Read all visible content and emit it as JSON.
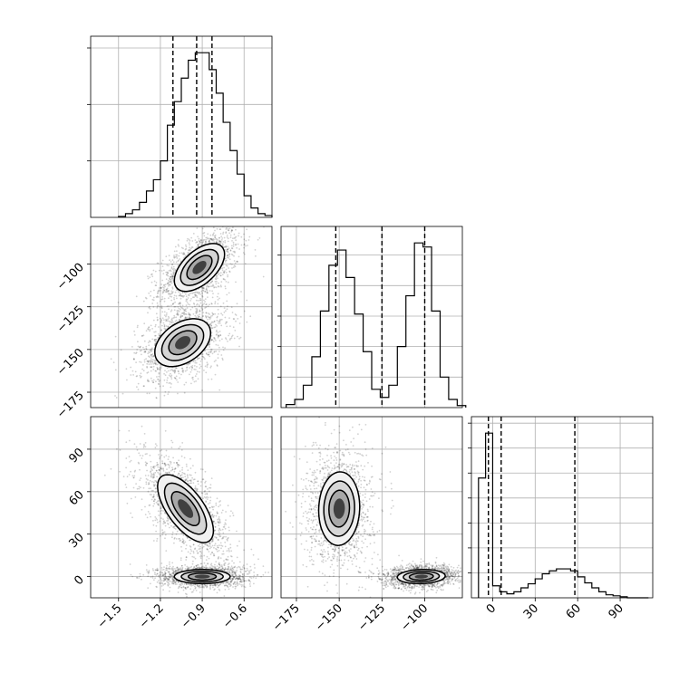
{
  "chart_data": {
    "type": "corner",
    "title": "",
    "params": [
      {
        "label": "",
        "ticks": [
          -1.5,
          -1.2,
          -0.9,
          -0.6
        ],
        "tick_labels": [
          "−1.5",
          "−1.2",
          "−0.9",
          "−0.6"
        ],
        "range": [
          -1.7,
          -0.4
        ]
      },
      {
        "label": "",
        "ticks": [
          -175,
          -150,
          -125,
          -100
        ],
        "tick_labels": [
          "−175",
          "−150",
          "−125",
          "−100"
        ],
        "range": [
          -184,
          -78
        ]
      },
      {
        "label": "",
        "ticks": [
          0,
          30,
          60,
          90
        ],
        "tick_labels": [
          "0",
          "30",
          "60",
          "90"
        ],
        "range": [
          -15,
          113
        ]
      }
    ],
    "histograms": [
      {
        "param": 0,
        "bin_edges": [
          -1.5,
          -1.45,
          -1.4,
          -1.35,
          -1.3,
          -1.25,
          -1.2,
          -1.15,
          -1.1,
          -1.05,
          -1.0,
          -0.95,
          -0.9,
          -0.85,
          -0.8,
          -0.75,
          -0.7,
          -0.65,
          -0.6,
          -0.55,
          -0.5,
          -0.45,
          -0.4
        ],
        "counts": [
          1,
          4,
          8,
          16,
          28,
          40,
          60,
          98,
          123,
          148,
          167,
          175,
          175,
          157,
          132,
          101,
          71,
          46,
          23,
          10,
          4,
          2
        ],
        "quantiles": [
          -1.11,
          -0.94,
          -0.83
        ]
      },
      {
        "param": 1,
        "bin_edges": [
          -181,
          -176,
          -171,
          -166,
          -161,
          -156,
          -151,
          -146,
          -141,
          -136,
          -131,
          -126,
          -121,
          -116,
          -111,
          -106,
          -101,
          -96,
          -91,
          -86,
          -81,
          -76
        ],
        "counts": [
          3,
          8,
          22,
          50,
          95,
          140,
          155,
          128,
          92,
          55,
          18,
          10,
          22,
          60,
          110,
          162,
          158,
          95,
          30,
          8,
          2
        ],
        "quantiles": [
          -152,
          -125,
          -100
        ]
      },
      {
        "param": 2,
        "bin_edges": [
          -10,
          -5,
          0,
          5,
          10,
          15,
          20,
          25,
          30,
          35,
          40,
          45,
          50,
          55,
          60,
          65,
          70,
          75,
          80,
          85,
          90,
          95,
          100,
          105,
          110
        ],
        "counts": [
          120,
          165,
          12,
          6,
          4,
          6,
          10,
          14,
          19,
          24,
          27,
          29,
          29,
          27,
          21,
          15,
          10,
          6,
          3,
          2,
          1,
          0,
          0,
          0
        ],
        "quantiles": [
          -3,
          6,
          58
        ]
      }
    ],
    "densities": [
      {
        "x": 0,
        "y": 1,
        "modes": [
          {
            "center": [
              -0.92,
              -102
            ],
            "spread": [
              0.09,
              7
            ],
            "rho": 0.55,
            "weight": 0.5
          },
          {
            "center": [
              -1.04,
              -146
            ],
            "spread": [
              0.1,
              7
            ],
            "rho": 0.4,
            "weight": 0.5
          }
        ]
      },
      {
        "x": 0,
        "y": 2,
        "modes": [
          {
            "center": [
              -1.02,
              48
            ],
            "spread": [
              0.1,
              12
            ],
            "rho": -0.65,
            "weight": 0.5
          },
          {
            "center": [
              -0.9,
              0
            ],
            "spread": [
              0.1,
              2.5
            ],
            "rho": 0.0,
            "weight": 0.5
          }
        ]
      },
      {
        "x": 1,
        "y": 2,
        "modes": [
          {
            "center": [
              -150,
              48
            ],
            "spread": [
              6,
              13
            ],
            "rho": 0.05,
            "weight": 0.5
          },
          {
            "center": [
              -102,
              0
            ],
            "spread": [
              7,
              2.5
            ],
            "rho": 0.1,
            "weight": 0.5
          }
        ]
      }
    ],
    "grid": true,
    "legend": "none"
  }
}
